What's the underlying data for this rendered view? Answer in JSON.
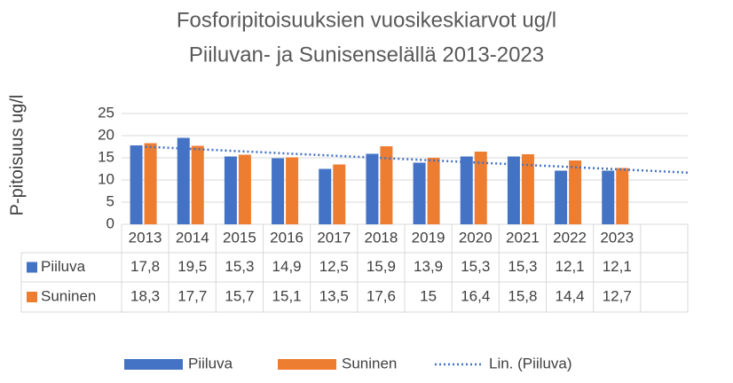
{
  "chart_data": {
    "type": "bar",
    "title": [
      "Fosforipitoisuuksien vuosikeskiarvot ug/l",
      "Piiluvan- ja Sunisenselällä 2013-2023"
    ],
    "y_label": "P-pitoisuus ug/l",
    "categories": [
      "2013",
      "2014",
      "2015",
      "2016",
      "2017",
      "2018",
      "2019",
      "2020",
      "2021",
      "2022",
      "2023",
      null
    ],
    "series": [
      {
        "name": "Piiluva",
        "color": "#4472c4",
        "values": [
          17.8,
          19.5,
          15.3,
          14.9,
          12.5,
          15.9,
          13.9,
          15.3,
          15.3,
          12.1,
          12.1,
          null
        ],
        "value_labels": [
          "17,8",
          "19,5",
          "15,3",
          "14,9",
          "12,5",
          "15,9",
          "13,9",
          "15,3",
          "15,3",
          "12,1",
          "12,1",
          null
        ]
      },
      {
        "name": "Suninen",
        "color": "#ed7d31",
        "values": [
          18.3,
          17.7,
          15.7,
          15.1,
          13.5,
          17.6,
          15,
          16.4,
          15.8,
          14.4,
          12.7,
          null
        ],
        "value_labels": [
          "18,3",
          "17,7",
          "15,7",
          "15,1",
          "13,5",
          "17,6",
          "15",
          "16,4",
          "15,8",
          "14,4",
          "12,7",
          null
        ]
      }
    ],
    "trendline": {
      "name": "Lin. (Piiluva)",
      "color": "#4472c4"
    },
    "ylim": [
      0,
      25
    ],
    "yticks": [
      0,
      5,
      10,
      15,
      20,
      25
    ],
    "grid": true
  }
}
